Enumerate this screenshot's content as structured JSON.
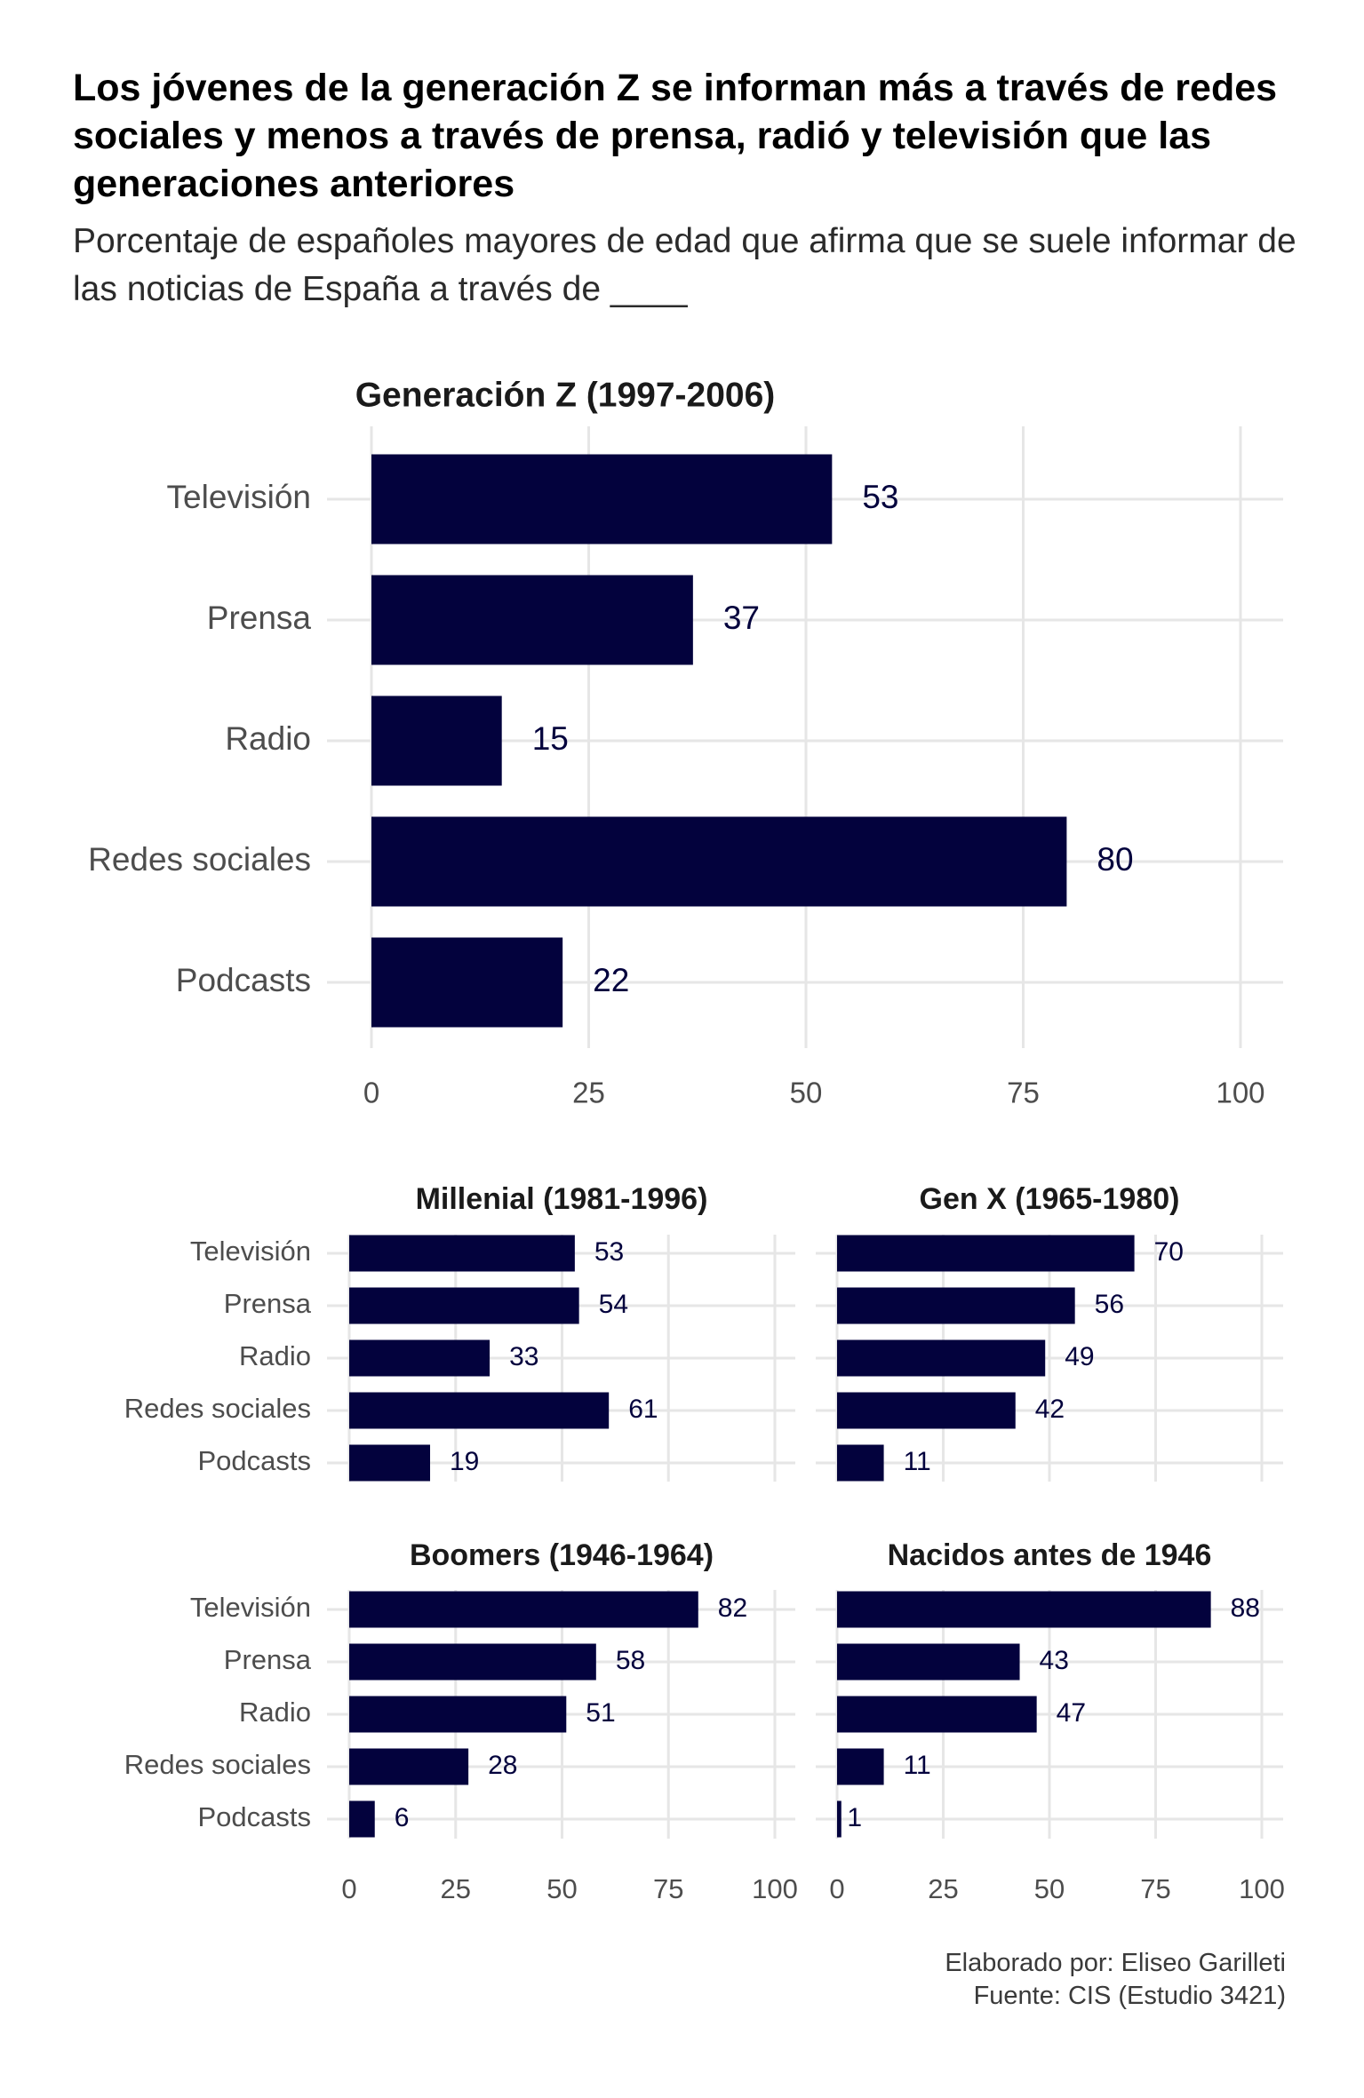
{
  "title": "Los jóvenes de la generación Z se informan más a través de redes sociales y menos a través de prensa, radió y televisión que las generaciones anteriores",
  "subtitle": "Porcentaje de españoles mayores de edad que afirma que se suele informar de las noticias de España a través de ____",
  "caption": {
    "author": "Elaborado por: Eliseo Garilleti",
    "source": "Fuente: CIS (Estudio 3421)"
  },
  "colors": {
    "bar": "#03023d",
    "label": "#03023d",
    "grid": "#e6e6e6",
    "axis_text": "#4d4d4d",
    "facet_title": "#1a1a1a"
  },
  "chart_data": [
    {
      "type": "bar",
      "orientation": "horizontal",
      "title": "Generación Z (1997-2006)",
      "categories": [
        "Televisión",
        "Prensa",
        "Radio",
        "Redes sociales",
        "Podcasts"
      ],
      "values": [
        53,
        37,
        15,
        80,
        22
      ],
      "xlim": [
        0,
        100
      ],
      "xticks": [
        0,
        25,
        50,
        75,
        100
      ],
      "grid": true
    },
    {
      "type": "bar",
      "orientation": "horizontal",
      "title": "Millenial (1981-1996)",
      "categories": [
        "Televisión",
        "Prensa",
        "Radio",
        "Redes sociales",
        "Podcasts"
      ],
      "values": [
        53,
        54,
        33,
        61,
        19
      ],
      "xlim": [
        0,
        100
      ],
      "grid": true
    },
    {
      "type": "bar",
      "orientation": "horizontal",
      "title": "Gen X (1965-1980)",
      "categories": [
        "Televisión",
        "Prensa",
        "Radio",
        "Redes sociales",
        "Podcasts"
      ],
      "values": [
        70,
        56,
        49,
        42,
        11
      ],
      "xlim": [
        0,
        100
      ],
      "grid": true
    },
    {
      "type": "bar",
      "orientation": "horizontal",
      "title": "Boomers (1946-1964)",
      "categories": [
        "Televisión",
        "Prensa",
        "Radio",
        "Redes sociales",
        "Podcasts"
      ],
      "values": [
        82,
        58,
        51,
        28,
        6
      ],
      "xlim": [
        0,
        100
      ],
      "xticks": [
        0,
        25,
        50,
        75,
        100
      ],
      "grid": true
    },
    {
      "type": "bar",
      "orientation": "horizontal",
      "title": "Nacidos antes de 1946",
      "categories": [
        "Televisión",
        "Prensa",
        "Radio",
        "Redes sociales",
        "Podcasts"
      ],
      "values": [
        88,
        43,
        47,
        11,
        1
      ],
      "xlim": [
        0,
        100
      ],
      "xticks": [
        0,
        25,
        50,
        75,
        100
      ],
      "grid": true
    }
  ]
}
